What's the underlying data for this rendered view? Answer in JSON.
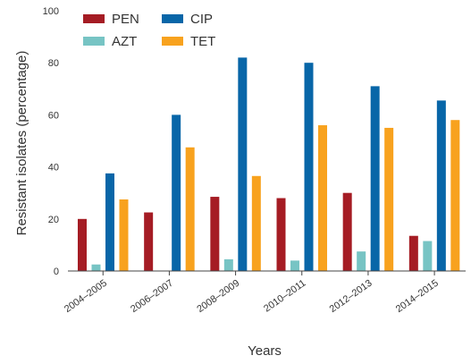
{
  "chart_data": {
    "type": "bar",
    "title": "",
    "xlabel": "Years",
    "ylabel": "Resistant isolates (percentage)",
    "ylim": [
      0,
      100
    ],
    "yticks": [
      "0",
      "20",
      "40",
      "60",
      "80",
      "100"
    ],
    "categories": [
      "2004–2005",
      "2006–2007",
      "2008–2009",
      "2010–2011",
      "2012–2013",
      "2014–2015"
    ],
    "series": [
      {
        "name": "PEN",
        "color": "#a51c24",
        "values": [
          20,
          22.5,
          28.5,
          28,
          30,
          13.5
        ]
      },
      {
        "name": "AZT",
        "color": "#77c4c4",
        "values": [
          2.5,
          0,
          4.5,
          4,
          7.5,
          11.5
        ]
      },
      {
        "name": "CIP",
        "color": "#0866a8",
        "values": [
          37.5,
          60,
          82,
          80,
          71,
          65.5
        ]
      },
      {
        "name": "TET",
        "color": "#f8a21e",
        "values": [
          27.5,
          47.5,
          36.5,
          56,
          55,
          58
        ]
      }
    ],
    "legend": {
      "position": "top-left",
      "columns": 2
    },
    "grid": false
  }
}
